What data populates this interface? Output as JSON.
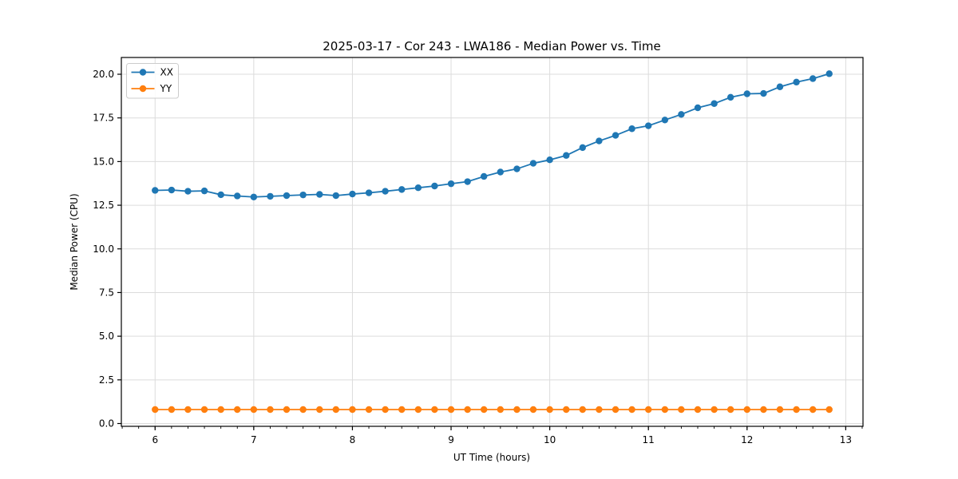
{
  "chart_data": {
    "type": "line",
    "title": "2025-03-17 - Cor 243 - LWA186 - Median Power vs. Time",
    "xlabel": "UT Time (hours)",
    "ylabel": "Median Power (CPU)",
    "grid": true,
    "legend_position": "upper-left",
    "xlim": [
      5.658,
      13.175
    ],
    "ylim": [
      -0.16,
      20.96
    ],
    "xtick_values": [
      6,
      7,
      8,
      9,
      10,
      11,
      12,
      13
    ],
    "xtick_labels": [
      "6",
      "7",
      "8",
      "9",
      "10",
      "11",
      "12",
      "13"
    ],
    "ytick_values": [
      0.0,
      2.5,
      5.0,
      7.5,
      10.0,
      12.5,
      15.0,
      17.5,
      20.0
    ],
    "ytick_labels": [
      "0.0",
      "2.5",
      "5.0",
      "7.5",
      "10.0",
      "12.5",
      "15.0",
      "17.5",
      "20.0"
    ],
    "x_minor_tick_step": 0.166667,
    "x": [
      6.0,
      6.167,
      6.333,
      6.5,
      6.667,
      6.833,
      7.0,
      7.167,
      7.333,
      7.5,
      7.667,
      7.833,
      8.0,
      8.167,
      8.333,
      8.5,
      8.667,
      8.833,
      9.0,
      9.167,
      9.333,
      9.5,
      9.667,
      9.833,
      10.0,
      10.167,
      10.333,
      10.5,
      10.667,
      10.833,
      11.0,
      11.167,
      11.333,
      11.5,
      11.667,
      11.833,
      12.0,
      12.167,
      12.333,
      12.5,
      12.667,
      12.833
    ],
    "series": [
      {
        "name": "XX",
        "color": "#1f77b4",
        "values": [
          13.35,
          13.37,
          13.3,
          13.32,
          13.1,
          13.03,
          12.97,
          13.01,
          13.05,
          13.09,
          13.12,
          13.05,
          13.14,
          13.21,
          13.3,
          13.4,
          13.5,
          13.6,
          13.73,
          13.85,
          14.15,
          14.4,
          14.58,
          14.9,
          15.1,
          15.35,
          15.8,
          16.18,
          16.5,
          16.88,
          17.05,
          17.38,
          17.7,
          18.08,
          18.32,
          18.68,
          18.88,
          18.9,
          19.28,
          19.55,
          19.75,
          20.03
        ],
        "marker": "circle"
      },
      {
        "name": "YY",
        "color": "#ff7f0e",
        "values": [
          0.8,
          0.8,
          0.8,
          0.8,
          0.8,
          0.8,
          0.8,
          0.8,
          0.8,
          0.8,
          0.8,
          0.8,
          0.8,
          0.8,
          0.8,
          0.8,
          0.8,
          0.8,
          0.8,
          0.8,
          0.8,
          0.8,
          0.8,
          0.8,
          0.8,
          0.8,
          0.8,
          0.8,
          0.8,
          0.8,
          0.8,
          0.8,
          0.8,
          0.8,
          0.8,
          0.8,
          0.8,
          0.8,
          0.8,
          0.8,
          0.8,
          0.8
        ],
        "marker": "circle"
      }
    ],
    "colors": {
      "spine": "#000000",
      "grid": "#dcdcdc",
      "background": "#ffffff",
      "legend_border": "#cccccc"
    }
  }
}
